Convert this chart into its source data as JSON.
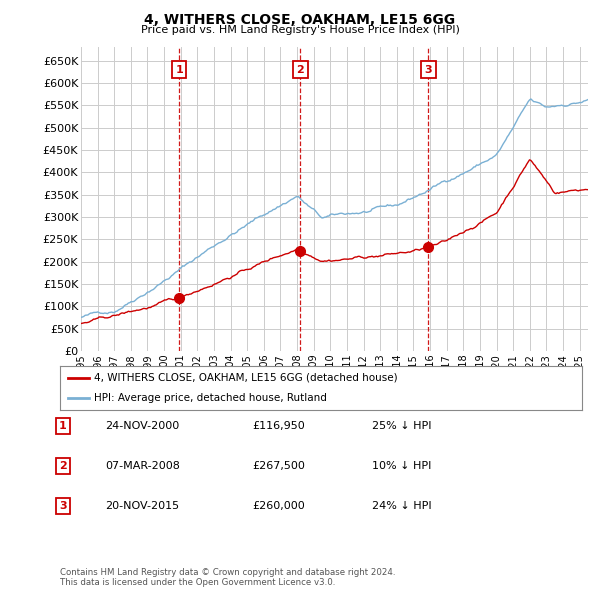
{
  "title": "4, WITHERS CLOSE, OAKHAM, LE15 6GG",
  "subtitle": "Price paid vs. HM Land Registry's House Price Index (HPI)",
  "ylabel_ticks": [
    "£0",
    "£50K",
    "£100K",
    "£150K",
    "£200K",
    "£250K",
    "£300K",
    "£350K",
    "£400K",
    "£450K",
    "£500K",
    "£550K",
    "£600K",
    "£650K"
  ],
  "ytick_values": [
    0,
    50000,
    100000,
    150000,
    200000,
    250000,
    300000,
    350000,
    400000,
    450000,
    500000,
    550000,
    600000,
    650000
  ],
  "xmin": 1995.0,
  "xmax": 2025.5,
  "ymin": 0,
  "ymax": 680000,
  "sale_color": "#cc0000",
  "hpi_color": "#7ab0d4",
  "transactions": [
    {
      "num": 1,
      "date": "24-NOV-2000",
      "price": 116950,
      "pct": "25% ↓ HPI",
      "x_year": 2000.9
    },
    {
      "num": 2,
      "date": "07-MAR-2008",
      "price": 267500,
      "pct": "10% ↓ HPI",
      "x_year": 2008.2
    },
    {
      "num": 3,
      "date": "20-NOV-2015",
      "price": 260000,
      "pct": "24% ↓ HPI",
      "x_year": 2015.9
    }
  ],
  "legend_entry1": "4, WITHERS CLOSE, OAKHAM, LE15 6GG (detached house)",
  "legend_entry2": "HPI: Average price, detached house, Rutland",
  "footnote": "Contains HM Land Registry data © Crown copyright and database right 2024.\nThis data is licensed under the Open Government Licence v3.0.",
  "bg_color": "#ffffff",
  "grid_color": "#cccccc"
}
